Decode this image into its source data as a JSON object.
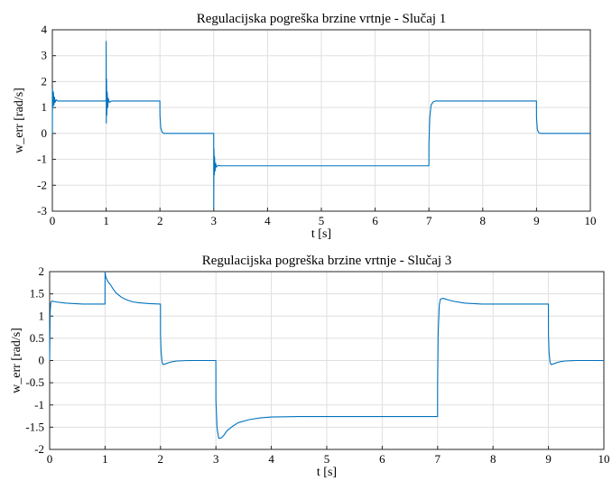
{
  "chart_data": [
    {
      "type": "line",
      "title": "Regulacijska pogreška brzine vrtnje - Slučaj 1",
      "xlabel": "t [s]",
      "ylabel": "w_err [rad/s]",
      "xlim": [
        0,
        10
      ],
      "ylim": [
        -3,
        4
      ],
      "xticks": [
        0,
        1,
        2,
        3,
        4,
        5,
        6,
        7,
        8,
        9,
        10
      ],
      "yticks": [
        -3,
        -2,
        -1,
        0,
        1,
        2,
        3,
        4
      ],
      "grid": true,
      "color": "#0072BD",
      "series": [
        {
          "x": [
            0,
            0.003,
            0.01,
            0.02,
            0.03,
            0.04,
            0.05,
            0.07,
            0.1,
            0.999,
            1.0,
            1.003,
            1.007,
            1.012,
            1.02,
            1.03,
            1.04,
            1.06,
            1.1,
            1.999,
            2.0,
            2.015,
            2.04,
            2.08,
            2.12,
            2.999,
            3.0,
            3.004,
            3.01,
            3.015,
            3.025,
            3.035,
            3.05,
            3.08,
            3.12,
            6.999,
            7.0,
            7.015,
            7.04,
            7.08,
            7.12,
            8.999,
            9.0,
            9.015,
            9.04,
            9.08,
            9.12,
            10
          ],
          "y": [
            0,
            1.7,
            1.0,
            1.6,
            1.1,
            1.4,
            1.2,
            1.3,
            1.25,
            1.25,
            3.55,
            0.4,
            2.1,
            0.7,
            1.6,
            1.0,
            1.35,
            1.2,
            1.25,
            1.25,
            0.7,
            0.2,
            0.05,
            0.0,
            0.0,
            0.0,
            -2.9,
            -0.6,
            -1.6,
            -0.9,
            -1.45,
            -1.15,
            -1.3,
            -1.23,
            -1.25,
            -1.25,
            -0.4,
            0.6,
            1.1,
            1.22,
            1.25,
            1.25,
            0.6,
            0.15,
            0.03,
            0.0,
            0.0,
            0.0
          ]
        }
      ]
    },
    {
      "type": "line",
      "title": "Regulacijska pogreška brzine vrtnje - Slučaj 3",
      "xlabel": "t [s]",
      "ylabel": "w_err [rad/s]",
      "xlim": [
        0,
        10
      ],
      "ylim": [
        -2,
        2
      ],
      "xticks": [
        0,
        1,
        2,
        3,
        4,
        5,
        6,
        7,
        8,
        9,
        10
      ],
      "yticks": [
        -2,
        -1.5,
        -1,
        -0.5,
        0,
        0.5,
        1,
        1.5,
        2
      ],
      "grid": true,
      "color": "#0072BD",
      "series": [
        {
          "x": [
            0,
            0.01,
            0.02,
            0.04,
            0.1,
            0.3,
            0.6,
            0.999,
            1.0,
            1.01,
            1.03,
            1.05,
            1.1,
            1.15,
            1.2,
            1.3,
            1.4,
            1.5,
            1.6,
            1.8,
            1.999,
            2.0,
            2.01,
            2.03,
            2.05,
            2.08,
            2.12,
            2.2,
            2.3,
            2.5,
            2.999,
            3.0,
            3.02,
            3.05,
            3.1,
            3.15,
            3.2,
            3.3,
            3.4,
            3.6,
            3.8,
            4.0,
            4.5,
            5.0,
            6.999,
            7.0,
            7.01,
            7.03,
            7.05,
            7.1,
            7.2,
            7.3,
            7.5,
            7.8,
            8.0,
            8.999,
            9.0,
            9.01,
            9.03,
            9.05,
            9.08,
            9.12,
            9.2,
            9.3,
            9.5,
            10
          ],
          "y": [
            0,
            1.1,
            1.3,
            1.34,
            1.32,
            1.29,
            1.27,
            1.27,
            2.0,
            1.9,
            1.83,
            1.78,
            1.7,
            1.6,
            1.52,
            1.42,
            1.36,
            1.32,
            1.3,
            1.28,
            1.27,
            0.6,
            0.2,
            -0.05,
            -0.09,
            -0.08,
            -0.06,
            -0.03,
            -0.01,
            0.0,
            0.0,
            -0.9,
            -1.5,
            -1.75,
            -1.74,
            -1.67,
            -1.58,
            -1.48,
            -1.4,
            -1.33,
            -1.29,
            -1.27,
            -1.26,
            -1.26,
            -1.26,
            -0.5,
            0.6,
            1.25,
            1.38,
            1.4,
            1.36,
            1.33,
            1.29,
            1.27,
            1.27,
            1.27,
            0.6,
            0.2,
            -0.05,
            -0.09,
            -0.08,
            -0.06,
            -0.03,
            -0.01,
            0.0,
            0.0
          ]
        }
      ]
    }
  ]
}
